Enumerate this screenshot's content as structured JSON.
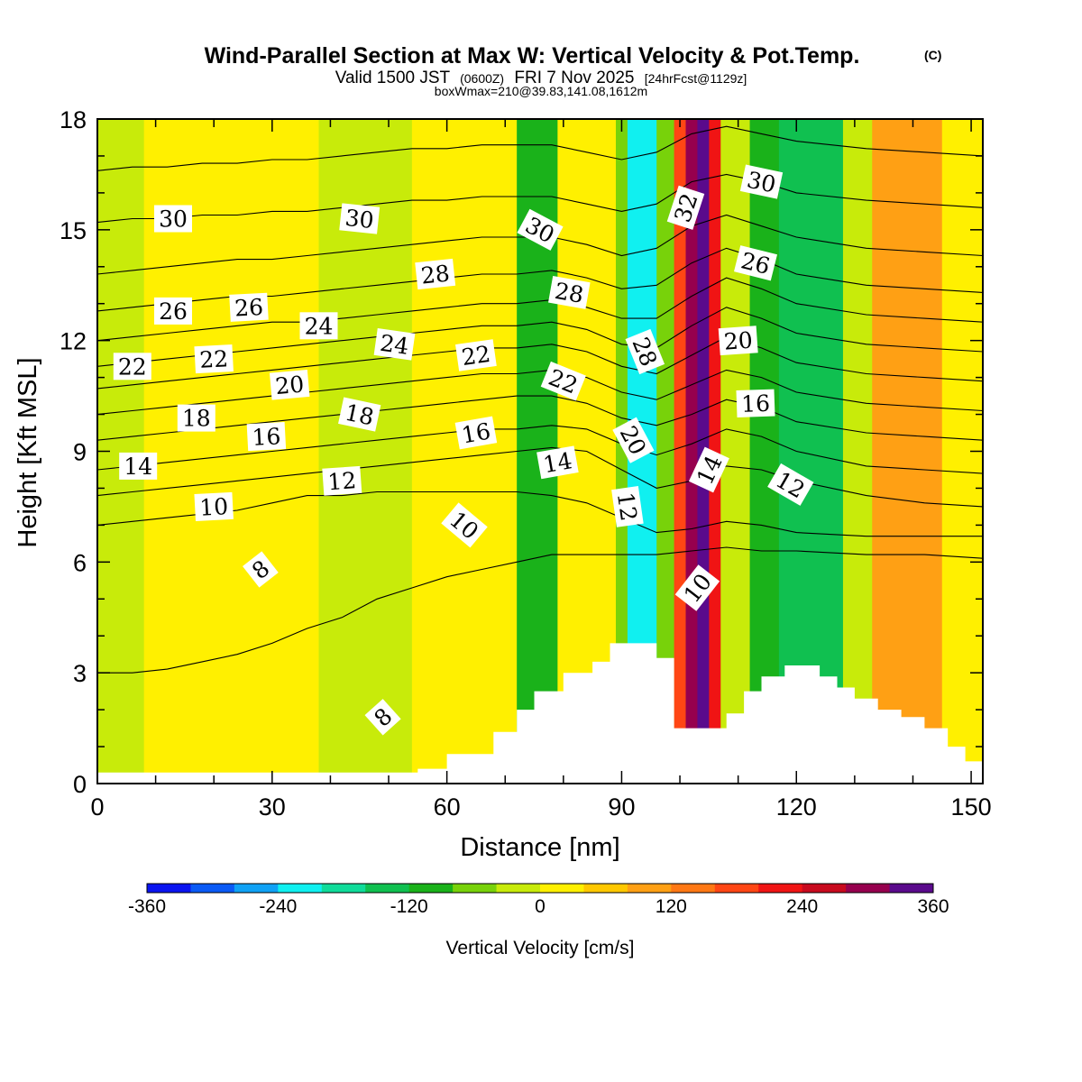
{
  "header": {
    "title": "Wind-Parallel Section at Max W: Vertical Velocity & Pot.Temp.",
    "copyright": "(C)",
    "valid_prefix": "Valid 1500 JST",
    "valid_utc": "(0600Z)",
    "valid_date": "FRI 7 Nov 2025",
    "forecast": "[24hrFcst@1129z]",
    "boxwmax": "boxWmax=210@39.83,141.08,1612m"
  },
  "chart_data": {
    "type": "heatmap",
    "xlabel": "Distance [nm]",
    "ylabel": "Height [Kft MSL]",
    "xlim": [
      0,
      152
    ],
    "ylim": [
      0,
      18
    ],
    "xticks": [
      0,
      30,
      60,
      90,
      120,
      150
    ],
    "yticks": [
      0,
      3,
      6,
      9,
      12,
      15,
      18
    ],
    "colorbar": {
      "label": "Vertical Velocity [cm/s]",
      "min": -360,
      "max": 360,
      "step": 40,
      "ticks": [
        -360,
        -240,
        -120,
        0,
        120,
        240,
        360
      ],
      "colors": [
        "#0a14f0",
        "#0a5af5",
        "#10a2f5",
        "#10f0f0",
        "#10dc9a",
        "#10c050",
        "#1ab21a",
        "#78d20a",
        "#c8eb0a",
        "#fff000",
        "#ffc800",
        "#ffa014",
        "#ff7814",
        "#ff4614",
        "#f01414",
        "#c80a1e",
        "#96004e",
        "#5a0a8c"
      ]
    },
    "field_bands": [
      {
        "x": [
          0,
          8
        ],
        "w": -20
      },
      {
        "x": [
          8,
          18
        ],
        "w": 10
      },
      {
        "x": [
          18,
          24
        ],
        "w": 20
      },
      {
        "x": [
          24,
          38
        ],
        "w": 10
      },
      {
        "x": [
          38,
          54
        ],
        "w": -20
      },
      {
        "x": [
          54,
          72
        ],
        "w": 15
      },
      {
        "x": [
          72,
          79
        ],
        "w": -90
      },
      {
        "x": [
          79,
          89
        ],
        "w": 20
      },
      {
        "x": [
          89,
          91
        ],
        "w": -60
      },
      {
        "x": [
          91,
          96
        ],
        "w": -230
      },
      {
        "x": [
          96,
          99
        ],
        "w": -60
      },
      {
        "x": [
          99,
          101
        ],
        "w": 190
      },
      {
        "x": [
          101,
          103
        ],
        "w": 300
      },
      {
        "x": [
          103,
          105
        ],
        "w": 340
      },
      {
        "x": [
          105,
          107
        ],
        "w": 210
      },
      {
        "x": [
          107,
          112
        ],
        "w": -20
      },
      {
        "x": [
          112,
          117
        ],
        "w": -90
      },
      {
        "x": [
          117,
          128
        ],
        "w": -160
      },
      {
        "x": [
          128,
          133
        ],
        "w": -40
      },
      {
        "x": [
          133,
          145
        ],
        "w": 80
      },
      {
        "x": [
          145,
          152
        ],
        "w": 10
      }
    ],
    "terrain": {
      "x": [
        0,
        8,
        16,
        24,
        32,
        40,
        48,
        55,
        60,
        68,
        72,
        75,
        80,
        85,
        88,
        93,
        96,
        99,
        101,
        105,
        108,
        111,
        114,
        118,
        121,
        124,
        127,
        130,
        134,
        138,
        142,
        146,
        149,
        152
      ],
      "height": [
        0.3,
        0.3,
        0.3,
        0.3,
        0.3,
        0.3,
        0.3,
        0.4,
        0.8,
        1.4,
        2.0,
        2.5,
        3.0,
        3.3,
        3.8,
        3.8,
        3.4,
        1.5,
        1.5,
        1.5,
        1.9,
        2.5,
        2.9,
        3.2,
        3.2,
        2.9,
        2.6,
        2.3,
        2.0,
        1.8,
        1.5,
        1.0,
        0.6,
        0.6
      ]
    },
    "contours": [
      {
        "theta": 8,
        "height": [
          3.0,
          3.0,
          3.1,
          3.3,
          3.5,
          3.8,
          4.2,
          4.5,
          5.0,
          5.3,
          5.6,
          5.8,
          6.0,
          6.2,
          6.2,
          6.2,
          6.2,
          6.3,
          6.4,
          6.3,
          6.3,
          6.2,
          6.2,
          6.1
        ]
      },
      {
        "theta": 10,
        "height": [
          7.0,
          7.1,
          7.2,
          7.3,
          7.4,
          7.6,
          7.8,
          7.8,
          7.9,
          7.9,
          7.9,
          7.9,
          7.9,
          7.8,
          7.6,
          7.2,
          6.8,
          6.9,
          7.1,
          7.0,
          6.8,
          6.7,
          6.7,
          6.7
        ]
      },
      {
        "theta": 12,
        "height": [
          7.8,
          7.9,
          8.0,
          8.1,
          8.2,
          8.3,
          8.4,
          8.5,
          8.6,
          8.7,
          8.8,
          8.9,
          9.0,
          9.1,
          9.0,
          8.5,
          8.0,
          8.2,
          8.6,
          8.5,
          8.2,
          7.8,
          7.6,
          7.5
        ]
      },
      {
        "theta": 14,
        "height": [
          8.5,
          8.6,
          8.7,
          8.8,
          8.9,
          9.0,
          9.1,
          9.2,
          9.3,
          9.4,
          9.5,
          9.6,
          9.6,
          9.7,
          9.6,
          9.2,
          8.9,
          9.2,
          9.6,
          9.4,
          9.0,
          8.6,
          8.5,
          8.4
        ]
      },
      {
        "theta": 16,
        "height": [
          9.3,
          9.4,
          9.5,
          9.6,
          9.7,
          9.8,
          9.9,
          10.0,
          10.1,
          10.2,
          10.3,
          10.4,
          10.5,
          10.5,
          10.3,
          9.9,
          9.7,
          10.0,
          10.4,
          10.2,
          9.8,
          9.5,
          9.4,
          9.3
        ]
      },
      {
        "theta": 18,
        "height": [
          10.0,
          10.1,
          10.2,
          10.3,
          10.4,
          10.5,
          10.6,
          10.7,
          10.8,
          10.9,
          11.0,
          11.1,
          11.1,
          11.2,
          11.0,
          10.6,
          10.4,
          10.8,
          11.2,
          11.0,
          10.6,
          10.3,
          10.2,
          10.1
        ]
      },
      {
        "theta": 20,
        "height": [
          10.7,
          10.8,
          10.9,
          11.0,
          11.1,
          11.2,
          11.3,
          11.4,
          11.5,
          11.6,
          11.7,
          11.8,
          11.8,
          11.9,
          11.7,
          11.3,
          11.1,
          11.6,
          12.1,
          11.8,
          11.4,
          11.1,
          11.0,
          10.9
        ]
      },
      {
        "theta": 22,
        "height": [
          11.3,
          11.4,
          11.5,
          11.6,
          11.7,
          11.8,
          11.9,
          12.0,
          12.1,
          12.2,
          12.3,
          12.4,
          12.4,
          12.5,
          12.3,
          11.9,
          11.8,
          12.4,
          12.9,
          12.6,
          12.2,
          11.9,
          11.8,
          11.7
        ]
      },
      {
        "theta": 24,
        "height": [
          12.0,
          12.1,
          12.2,
          12.3,
          12.4,
          12.5,
          12.5,
          12.6,
          12.7,
          12.8,
          12.9,
          13.0,
          13.0,
          13.1,
          12.9,
          12.6,
          12.6,
          13.2,
          13.7,
          13.4,
          13.0,
          12.7,
          12.6,
          12.5
        ]
      },
      {
        "theta": 26,
        "height": [
          12.8,
          12.9,
          13.0,
          13.1,
          13.2,
          13.2,
          13.3,
          13.4,
          13.5,
          13.6,
          13.7,
          13.8,
          13.8,
          13.9,
          13.7,
          13.4,
          13.5,
          14.1,
          14.5,
          14.2,
          13.8,
          13.5,
          13.4,
          13.3
        ]
      },
      {
        "theta": 28,
        "height": [
          13.8,
          13.9,
          14.0,
          14.1,
          14.2,
          14.2,
          14.3,
          14.4,
          14.5,
          14.6,
          14.7,
          14.8,
          14.8,
          14.8,
          14.6,
          14.3,
          14.5,
          15.1,
          15.4,
          15.1,
          14.8,
          14.5,
          14.4,
          14.3
        ]
      },
      {
        "theta": 30,
        "height": [
          15.2,
          15.3,
          15.3,
          15.4,
          15.4,
          15.5,
          15.5,
          15.6,
          15.7,
          15.8,
          15.8,
          15.9,
          15.9,
          15.9,
          15.7,
          15.5,
          15.7,
          16.3,
          16.5,
          16.3,
          16.0,
          15.8,
          15.7,
          15.6
        ]
      },
      {
        "theta": 32,
        "height": [
          16.6,
          16.7,
          16.7,
          16.8,
          16.8,
          16.9,
          16.9,
          17.0,
          17.1,
          17.2,
          17.2,
          17.3,
          17.3,
          17.3,
          17.1,
          16.9,
          17.1,
          17.6,
          17.8,
          17.6,
          17.4,
          17.2,
          17.1,
          17.0
        ]
      }
    ],
    "contour_x": [
      0,
      6,
      12,
      18,
      24,
      30,
      36,
      42,
      48,
      54,
      60,
      66,
      72,
      78,
      84,
      90,
      96,
      102,
      108,
      114,
      120,
      132,
      142,
      152
    ],
    "contour_labels": [
      {
        "text": "30",
        "x": 13,
        "y": 15.3,
        "angle": 0
      },
      {
        "text": "30",
        "x": 45,
        "y": 15.3,
        "angle": 6
      },
      {
        "text": "30",
        "x": 76,
        "y": 15.0,
        "angle": 28
      },
      {
        "text": "32",
        "x": 101,
        "y": 15.6,
        "angle": -72
      },
      {
        "text": "30",
        "x": 114,
        "y": 16.3,
        "angle": 12
      },
      {
        "text": "28",
        "x": 58,
        "y": 13.8,
        "angle": -6
      },
      {
        "text": "28",
        "x": 81,
        "y": 13.3,
        "angle": 10
      },
      {
        "text": "26",
        "x": 13,
        "y": 12.8,
        "angle": 0
      },
      {
        "text": "26",
        "x": 26,
        "y": 12.9,
        "angle": -3
      },
      {
        "text": "26",
        "x": 113,
        "y": 14.1,
        "angle": 14
      },
      {
        "text": "24",
        "x": 38,
        "y": 12.4,
        "angle": 0
      },
      {
        "text": "24",
        "x": 51,
        "y": 11.9,
        "angle": 8
      },
      {
        "text": "22",
        "x": 6,
        "y": 11.3,
        "angle": 0
      },
      {
        "text": "22",
        "x": 20,
        "y": 11.5,
        "angle": -3
      },
      {
        "text": "22",
        "x": 65,
        "y": 11.6,
        "angle": -8
      },
      {
        "text": "22",
        "x": 80,
        "y": 10.9,
        "angle": 22
      },
      {
        "text": "28",
        "x": 94,
        "y": 11.7,
        "angle": 68
      },
      {
        "text": "20",
        "x": 33,
        "y": 10.8,
        "angle": -5
      },
      {
        "text": "20",
        "x": 110,
        "y": 12.0,
        "angle": -4
      },
      {
        "text": "18",
        "x": 17,
        "y": 9.9,
        "angle": 0
      },
      {
        "text": "18",
        "x": 45,
        "y": 10.0,
        "angle": 12
      },
      {
        "text": "16",
        "x": 29,
        "y": 9.4,
        "angle": -3
      },
      {
        "text": "16",
        "x": 65,
        "y": 9.5,
        "angle": -10
      },
      {
        "text": "16",
        "x": 113,
        "y": 10.3,
        "angle": -2
      },
      {
        "text": "20",
        "x": 92,
        "y": 9.3,
        "angle": 62
      },
      {
        "text": "14",
        "x": 7,
        "y": 8.6,
        "angle": 0
      },
      {
        "text": "14",
        "x": 79,
        "y": 8.7,
        "angle": -10
      },
      {
        "text": "14",
        "x": 105,
        "y": 8.5,
        "angle": -65
      },
      {
        "text": "12",
        "x": 42,
        "y": 8.2,
        "angle": -4
      },
      {
        "text": "12",
        "x": 91,
        "y": 7.5,
        "angle": 82
      },
      {
        "text": "12",
        "x": 119,
        "y": 8.1,
        "angle": 30
      },
      {
        "text": "10",
        "x": 20,
        "y": 7.5,
        "angle": -3
      },
      {
        "text": "10",
        "x": 63,
        "y": 7.0,
        "angle": 40
      },
      {
        "text": "10",
        "x": 103,
        "y": 5.3,
        "angle": -52
      },
      {
        "text": "8",
        "x": 28,
        "y": 5.8,
        "angle": -38
      },
      {
        "text": "8",
        "x": 49,
        "y": 1.8,
        "angle": -42
      }
    ]
  },
  "style": {
    "frame_color": "#000000",
    "background": "#ffffff"
  }
}
